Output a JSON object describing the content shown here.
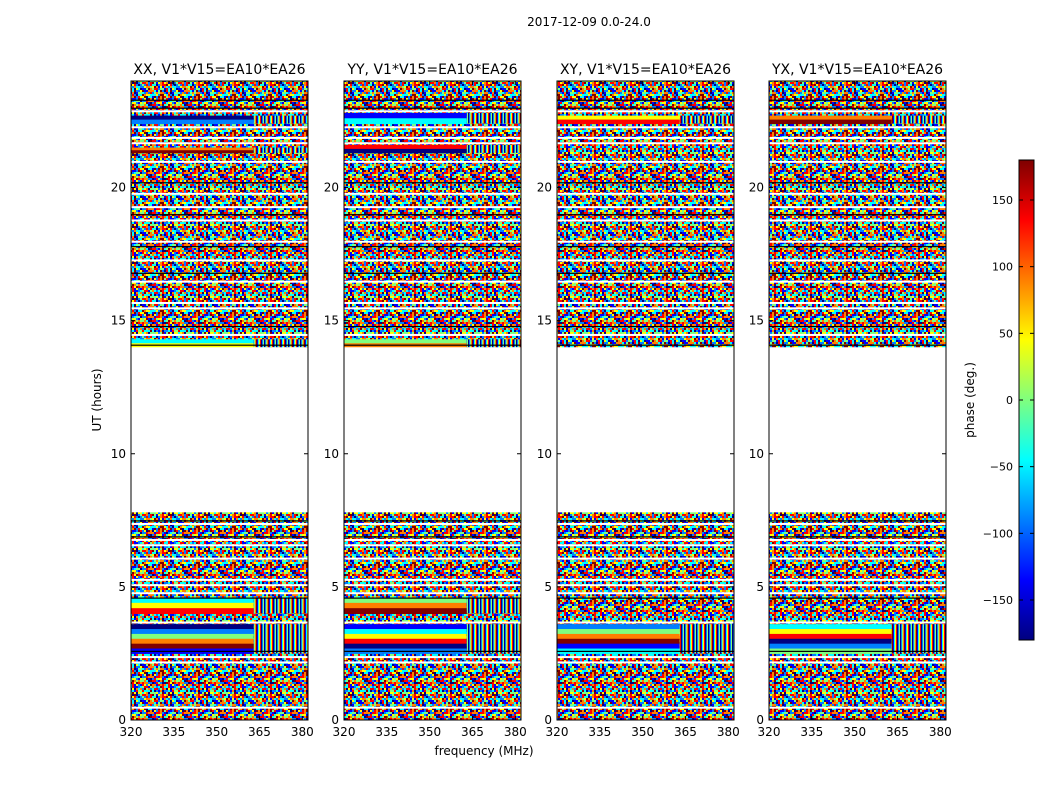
{
  "figure": {
    "suptitle": "2017-12-09 0.0-24.0",
    "xlabel": "frequency (MHz)",
    "ylabel": "UT (hours)",
    "colorbar_label": "phase (deg.)",
    "colorbar_ticks": [
      150,
      100,
      50,
      0,
      -50,
      -100,
      -150
    ],
    "colorbar_tick_labels": [
      "150",
      "100",
      "50",
      "0",
      "−50",
      "−100",
      "−150"
    ],
    "colorbar_range": [
      -180,
      180
    ]
  },
  "chart_data": {
    "type": "heatmap",
    "description_of_values": "phase (deg.) of visibility vs frequency and UT",
    "x": {
      "label": "frequency (MHz)",
      "range": [
        320,
        382
      ],
      "ticks": [
        320,
        335,
        350,
        365,
        380
      ],
      "tick_labels": [
        "320",
        "335",
        "350",
        "365",
        "380"
      ]
    },
    "y": {
      "label": "UT (hours)",
      "range": [
        0,
        24
      ],
      "ticks": [
        0,
        5,
        10,
        15,
        20
      ],
      "tick_labels": [
        "0",
        "5",
        "10",
        "15",
        "20"
      ]
    },
    "colormap": [
      "#00007f",
      "#0000ff",
      "#007fff",
      "#00ffff",
      "#7fff7f",
      "#ffff00",
      "#ff7f00",
      "#ff0000",
      "#7f0000"
    ],
    "data_gaps_ut_hours": [
      [
        7.8,
        14.0
      ]
    ],
    "panels": [
      {
        "title": "XX, V1*V15=EA10*EA26",
        "polarization": "XX",
        "coherent_bands_ut": [
          [
            2.5,
            3.6
          ],
          [
            4.0,
            4.6
          ],
          [
            21.3,
            21.5
          ],
          [
            22.4,
            22.7
          ],
          [
            14.0,
            14.3
          ]
        ]
      },
      {
        "title": "YY, V1*V15=EA10*EA26",
        "polarization": "YY",
        "coherent_bands_ut": [
          [
            2.5,
            3.6
          ],
          [
            4.0,
            4.6
          ],
          [
            21.3,
            21.6
          ],
          [
            22.4,
            22.8
          ],
          [
            14.0,
            14.3
          ]
        ]
      },
      {
        "title": "XY, V1*V15=EA10*EA26",
        "polarization": "XY",
        "coherent_bands_ut": [
          [
            2.5,
            3.6
          ],
          [
            22.4,
            22.7
          ]
        ]
      },
      {
        "title": "YX, V1*V15=EA10*EA26",
        "polarization": "YX",
        "coherent_bands_ut": [
          [
            2.5,
            3.6
          ],
          [
            22.4,
            22.7
          ]
        ]
      }
    ]
  }
}
